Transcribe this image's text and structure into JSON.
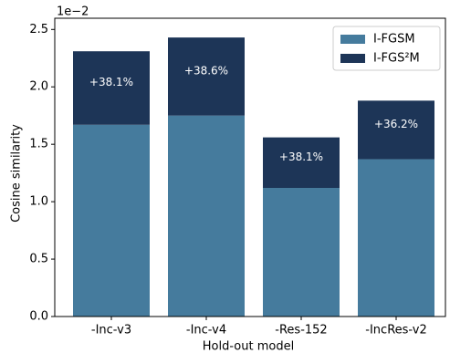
{
  "chart_data": {
    "type": "stacked_bar",
    "x_label": "Hold-out model",
    "y_label": "Cosine similarity",
    "y_offset_label": "1e−2",
    "categories": [
      "-Inc-v3",
      "-Inc-v4",
      "-Res-152",
      "-IncRes-v2"
    ],
    "series": [
      {
        "name": "I-FGSM",
        "color": "#457b9d",
        "values": [
          1.67,
          1.75,
          1.12,
          1.37
        ]
      },
      {
        "name": "I-FGS²M",
        "color": "#1d3557",
        "values": [
          0.64,
          0.68,
          0.44,
          0.51
        ]
      }
    ],
    "annotations": [
      "+38.1%",
      "+38.6%",
      "+38.1%",
      "+36.2%"
    ],
    "ylim": [
      0,
      2.55
    ],
    "yticks": [
      0.0,
      0.5,
      1.0,
      1.5,
      2.0,
      2.5
    ],
    "legend": "upper right"
  }
}
